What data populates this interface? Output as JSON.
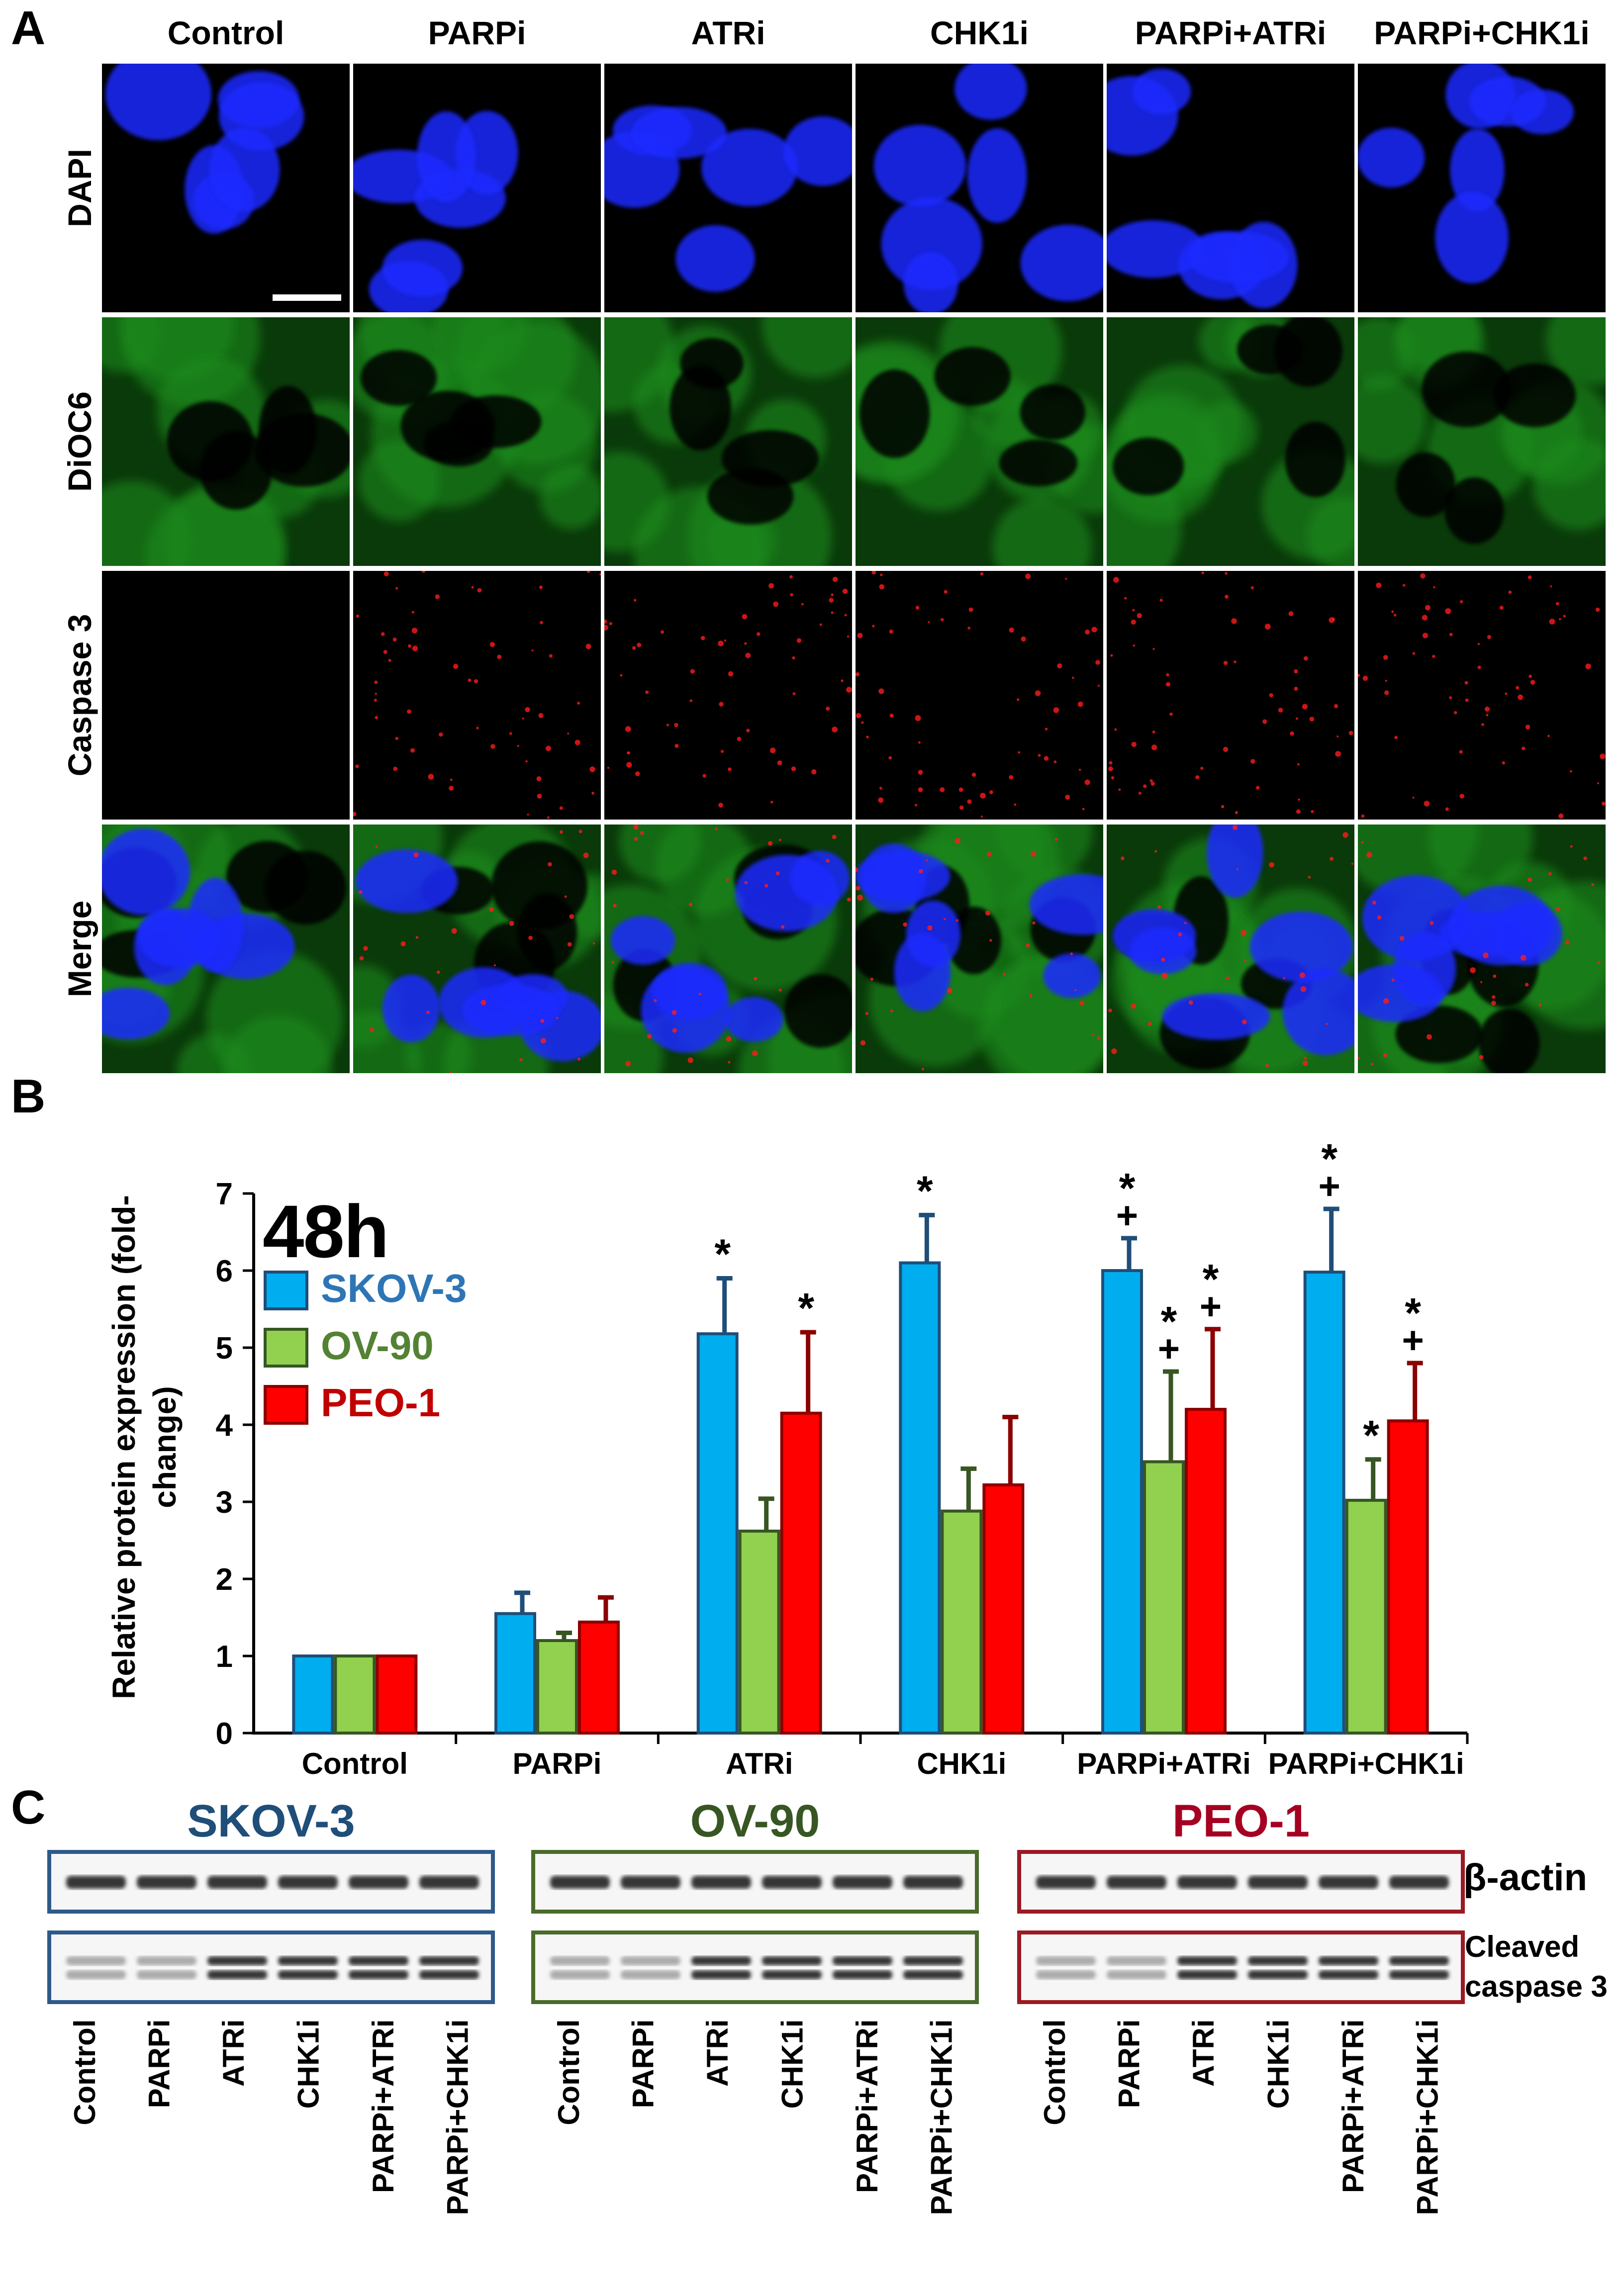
{
  "panels": {
    "a": "A",
    "b": "B",
    "c": "C"
  },
  "micrograph": {
    "columns": [
      "Control",
      "PARPi",
      "ATRi",
      "CHK1i",
      "PARPi+ATRi",
      "PARPi+CHK1i"
    ],
    "rows": [
      "DAPI",
      "DiOC6",
      "Caspase 3",
      "Merge"
    ]
  },
  "chart_data": {
    "type": "bar",
    "title": "48h",
    "ylabel": "Relative protein expression (fold-change)",
    "xlabel": "",
    "ylim": [
      0,
      7
    ],
    "yticks": [
      "0",
      "1",
      "2",
      "3",
      "4",
      "5",
      "6",
      "7"
    ],
    "categories": [
      "Control",
      "PARPi",
      "ATRi",
      "CHK1i",
      "PARPi+ATRi",
      "PARPi+CHK1i"
    ],
    "series": [
      {
        "name": "SKOV-3",
        "color": "#00adef",
        "edge": "#1f4e79",
        "values": [
          1.0,
          1.55,
          5.18,
          6.1,
          6.0,
          5.98
        ],
        "errors": [
          0.0,
          0.27,
          0.72,
          0.62,
          0.42,
          0.82
        ],
        "marks": [
          [],
          [],
          [
            "*"
          ],
          [
            "*"
          ],
          [
            "+",
            "*"
          ],
          [
            "+",
            "*"
          ]
        ]
      },
      {
        "name": "OV-90",
        "color": "#92d050",
        "edge": "#375623",
        "values": [
          1.0,
          1.2,
          2.62,
          2.88,
          3.52,
          3.02
        ],
        "errors": [
          0.0,
          0.1,
          0.42,
          0.55,
          1.17,
          0.53
        ],
        "marks": [
          [],
          [],
          [],
          [],
          [
            "+",
            "*"
          ],
          [
            "*"
          ]
        ]
      },
      {
        "name": "PEO-1",
        "color": "#ff0000",
        "edge": "#8b0000",
        "values": [
          1.0,
          1.44,
          4.15,
          3.22,
          4.2,
          4.05
        ],
        "errors": [
          0.0,
          0.32,
          1.05,
          0.88,
          1.04,
          0.75
        ],
        "marks": [
          [],
          [],
          [
            "*"
          ],
          [],
          [
            "+",
            "*"
          ],
          [
            "+",
            "*"
          ]
        ]
      }
    ],
    "legend": "top-left"
  },
  "blots": {
    "cell_lines": [
      {
        "name": "SKOV-3",
        "color": "#1f4e79"
      },
      {
        "name": "OV-90",
        "color": "#375623"
      },
      {
        "name": "PEO-1",
        "color": "#a50021"
      }
    ],
    "lanes": [
      "Control",
      "PARPi",
      "ATRi",
      "CHK1i",
      "PARPi+ATRi",
      "PARPi+CHK1i"
    ],
    "bands": [
      "β-actin",
      "Cleaved",
      "caspase 3"
    ]
  }
}
